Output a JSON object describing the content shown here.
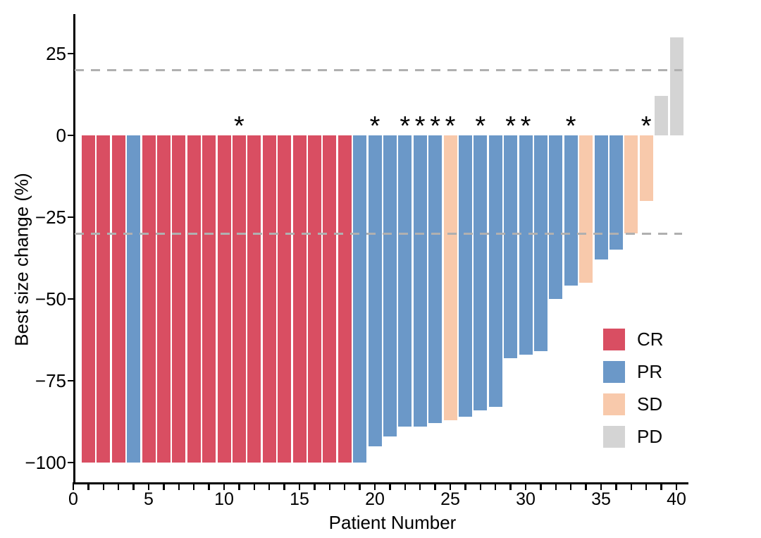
{
  "chart_data": {
    "type": "bar",
    "subtype": "waterfall",
    "title": "",
    "xlabel": "Patient Number",
    "ylabel": "Best size change (%)",
    "asterisk_marker": "*",
    "x_axis": {
      "min": 0,
      "max": 40,
      "minor_tick_step": 1,
      "major_tick_values": [
        0,
        5,
        10,
        15,
        20,
        25,
        30,
        35,
        40
      ],
      "major_tick_labels": [
        "0",
        "5",
        "10",
        "15",
        "20",
        "25",
        "30",
        "35",
        "40"
      ]
    },
    "y_axis": {
      "min": -100,
      "max": 30,
      "tick_values": [
        25,
        0,
        -25,
        -50,
        -75,
        -100
      ],
      "tick_labels": [
        "25",
        "0",
        "−25",
        "−50",
        "−75",
        "−100"
      ]
    },
    "thresholds": [
      {
        "value": 20,
        "style": "dashed",
        "color": "#b0b0b0"
      },
      {
        "value": -30,
        "style": "dashed",
        "color": "#b0b0b0"
      }
    ],
    "legend": [
      {
        "label": "CR",
        "color": "#d94e62"
      },
      {
        "label": "PR",
        "color": "#6b98c8"
      },
      {
        "label": "SD",
        "color": "#f8c9ab"
      },
      {
        "label": "PD",
        "color": "#d4d4d4"
      }
    ],
    "legend_position": "inside-bottom-right",
    "grid": false,
    "patients": [
      {
        "patient": 1,
        "value": -100,
        "response": "CR",
        "asterisk": false
      },
      {
        "patient": 2,
        "value": -100,
        "response": "CR",
        "asterisk": false
      },
      {
        "patient": 3,
        "value": -100,
        "response": "CR",
        "asterisk": false
      },
      {
        "patient": 4,
        "value": -100,
        "response": "PR",
        "asterisk": false
      },
      {
        "patient": 5,
        "value": -100,
        "response": "CR",
        "asterisk": false
      },
      {
        "patient": 6,
        "value": -100,
        "response": "CR",
        "asterisk": false
      },
      {
        "patient": 7,
        "value": -100,
        "response": "CR",
        "asterisk": false
      },
      {
        "patient": 8,
        "value": -100,
        "response": "CR",
        "asterisk": false
      },
      {
        "patient": 9,
        "value": -100,
        "response": "CR",
        "asterisk": false
      },
      {
        "patient": 10,
        "value": -100,
        "response": "CR",
        "asterisk": false
      },
      {
        "patient": 11,
        "value": -100,
        "response": "CR",
        "asterisk": true
      },
      {
        "patient": 12,
        "value": -100,
        "response": "CR",
        "asterisk": false
      },
      {
        "patient": 13,
        "value": -100,
        "response": "CR",
        "asterisk": false
      },
      {
        "patient": 14,
        "value": -100,
        "response": "CR",
        "asterisk": false
      },
      {
        "patient": 15,
        "value": -100,
        "response": "CR",
        "asterisk": false
      },
      {
        "patient": 16,
        "value": -100,
        "response": "CR",
        "asterisk": false
      },
      {
        "patient": 17,
        "value": -100,
        "response": "CR",
        "asterisk": false
      },
      {
        "patient": 18,
        "value": -100,
        "response": "CR",
        "asterisk": false
      },
      {
        "patient": 19,
        "value": -100,
        "response": "PR",
        "asterisk": false
      },
      {
        "patient": 20,
        "value": -95,
        "response": "PR",
        "asterisk": true
      },
      {
        "patient": 21,
        "value": -92,
        "response": "PR",
        "asterisk": false
      },
      {
        "patient": 22,
        "value": -89,
        "response": "PR",
        "asterisk": true
      },
      {
        "patient": 23,
        "value": -89,
        "response": "PR",
        "asterisk": true
      },
      {
        "patient": 24,
        "value": -88,
        "response": "PR",
        "asterisk": true
      },
      {
        "patient": 25,
        "value": -87,
        "response": "SD",
        "asterisk": true
      },
      {
        "patient": 26,
        "value": -86,
        "response": "PR",
        "asterisk": false
      },
      {
        "patient": 27,
        "value": -84,
        "response": "PR",
        "asterisk": true
      },
      {
        "patient": 28,
        "value": -83,
        "response": "PR",
        "asterisk": false
      },
      {
        "patient": 29,
        "value": -68,
        "response": "PR",
        "asterisk": true
      },
      {
        "patient": 30,
        "value": -67,
        "response": "PR",
        "asterisk": true
      },
      {
        "patient": 31,
        "value": -66,
        "response": "PR",
        "asterisk": false
      },
      {
        "patient": 32,
        "value": -50,
        "response": "PR",
        "asterisk": false
      },
      {
        "patient": 33,
        "value": -46,
        "response": "PR",
        "asterisk": true
      },
      {
        "patient": 34,
        "value": -45,
        "response": "SD",
        "asterisk": false
      },
      {
        "patient": 35,
        "value": -38,
        "response": "PR",
        "asterisk": false
      },
      {
        "patient": 36,
        "value": -35,
        "response": "PR",
        "asterisk": false
      },
      {
        "patient": 37,
        "value": -30,
        "response": "SD",
        "asterisk": false
      },
      {
        "patient": 38,
        "value": -20,
        "response": "SD",
        "asterisk": true
      },
      {
        "patient": 39,
        "value": 12,
        "response": "PD",
        "asterisk": false
      },
      {
        "patient": 40,
        "value": 30,
        "response": "PD",
        "asterisk": false
      }
    ]
  }
}
